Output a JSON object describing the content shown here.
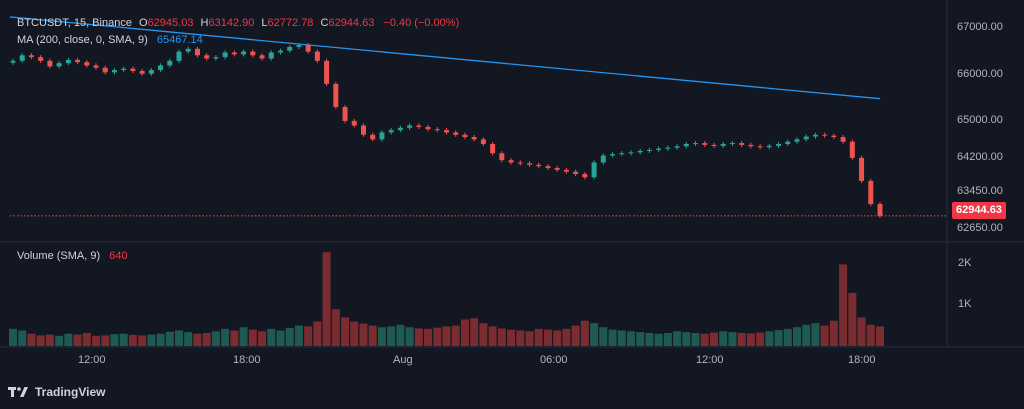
{
  "header": {
    "symbol": "BTCUSDT, 15, Binance",
    "open_label": "O",
    "open": "62945.03",
    "high_label": "H",
    "high": "63142.90",
    "low_label": "L",
    "low": "62772.78",
    "close_label": "C",
    "close": "62944.63",
    "change": "−0.40 (−0.00%)"
  },
  "ma_legend": {
    "label": "MA (200, close, 0, SMA, 9)",
    "value": "65467.14"
  },
  "volume_legend": {
    "label": "Volume (SMA, 9)",
    "value": "640"
  },
  "last_price_tag": "62944.63",
  "brand": {
    "name": "TradingView"
  },
  "colors": {
    "background": "#131722",
    "up": "#26a69a",
    "down": "#ef5350",
    "ma_line": "#2196f3",
    "text": "#b2b5be",
    "grid": "#2a2e39"
  },
  "chart_data": [
    {
      "type": "candlestick",
      "title": "BTCUSDT, 15, Binance",
      "ylim": [
        62400,
        67400
      ],
      "y_ticks": [
        "67000.00",
        "66000.00",
        "65000.00",
        "64200.00",
        "63450.00",
        "62650.00"
      ],
      "x_ticks": [
        "12:00",
        "18:00",
        "Aug",
        "06:00",
        "12:00",
        "18:00"
      ],
      "last_price": 62944.63,
      "close_series": [
        66300,
        66420,
        66380,
        66300,
        66180,
        66250,
        66320,
        66270,
        66200,
        66150,
        66050,
        66100,
        66130,
        66080,
        66020,
        66100,
        66200,
        66300,
        66500,
        66560,
        66420,
        66350,
        66380,
        66480,
        66440,
        66500,
        66420,
        66350,
        66480,
        66520,
        66600,
        66640,
        66500,
        66300,
        65800,
        65300,
        65000,
        64900,
        64700,
        64600,
        64750,
        64800,
        64850,
        64900,
        64870,
        64820,
        64800,
        64750,
        64700,
        64650,
        64600,
        64500,
        64300,
        64150,
        64100,
        64080,
        64050,
        64020,
        63980,
        63940,
        63900,
        63850,
        63780,
        64100,
        64250,
        64280,
        64300,
        64320,
        64350,
        64370,
        64400,
        64420,
        64450,
        64500,
        64520,
        64480,
        64460,
        64500,
        64520,
        64480,
        64450,
        64430,
        64460,
        64500,
        64550,
        64600,
        64660,
        64700,
        64680,
        64650,
        64550,
        64200,
        63700,
        63200,
        62945
      ],
      "ma_series": {
        "name": "MA (200, close, 0, SMA, 9)",
        "start": 67250,
        "end": 65480
      }
    },
    {
      "type": "bar",
      "title": "Volume (SMA, 9)",
      "y_ticks": [
        "2K",
        "1K"
      ],
      "ylim": [
        0,
        2500
      ],
      "values": [
        420,
        380,
        300,
        260,
        280,
        250,
        300,
        280,
        320,
        250,
        260,
        290,
        300,
        270,
        260,
        280,
        300,
        350,
        380,
        340,
        300,
        320,
        360,
        420,
        380,
        460,
        400,
        360,
        420,
        380,
        440,
        500,
        480,
        600,
        2300,
        900,
        700,
        600,
        550,
        500,
        460,
        480,
        520,
        460,
        430,
        420,
        450,
        480,
        500,
        650,
        680,
        560,
        480,
        430,
        400,
        380,
        360,
        420,
        400,
        380,
        420,
        500,
        620,
        560,
        460,
        400,
        380,
        360,
        340,
        320,
        300,
        320,
        360,
        340,
        320,
        300,
        330,
        360,
        340,
        320,
        310,
        330,
        360,
        390,
        420,
        460,
        520,
        560,
        500,
        620,
        2000,
        1300,
        700,
        520,
        480
      ]
    }
  ]
}
